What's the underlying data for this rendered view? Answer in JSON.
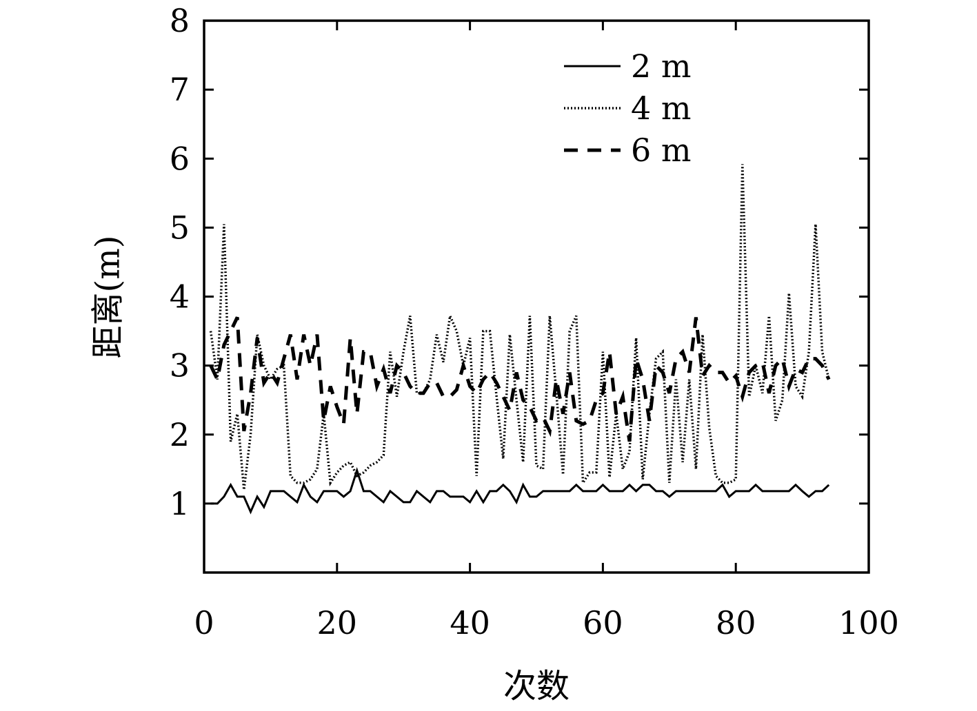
{
  "chart_data": {
    "type": "line",
    "title": "",
    "xlabel": "次数",
    "ylabel": "距离(m)",
    "xlim": [
      0,
      100
    ],
    "ylim": [
      0,
      8
    ],
    "x_ticks": [
      0,
      20,
      40,
      60,
      80,
      100
    ],
    "x_tick_labels": [
      "0",
      "20",
      "40",
      "60",
      "80",
      "100"
    ],
    "y_ticks": [
      1,
      2,
      3,
      4,
      5,
      6,
      7,
      8
    ],
    "y_tick_labels": [
      "1",
      "2",
      "3",
      "4",
      "5",
      "6",
      "7",
      "8"
    ],
    "grid": false,
    "legend_position": "top-right",
    "x": [
      1,
      2,
      3,
      4,
      5,
      6,
      7,
      8,
      9,
      10,
      11,
      12,
      13,
      14,
      15,
      16,
      17,
      18,
      19,
      20,
      21,
      22,
      23,
      24,
      25,
      26,
      27,
      28,
      29,
      30,
      31,
      32,
      33,
      34,
      35,
      36,
      37,
      38,
      39,
      40,
      41,
      42,
      43,
      44,
      45,
      46,
      47,
      48,
      49,
      50,
      51,
      52,
      53,
      54,
      55,
      56,
      57,
      58,
      59,
      60,
      61,
      62,
      63,
      64,
      65,
      66,
      67,
      68,
      69,
      70,
      71,
      72,
      73,
      74,
      75,
      76,
      77,
      78,
      79,
      80,
      81,
      82,
      83,
      84,
      85,
      86,
      87,
      88,
      89,
      90,
      91,
      92,
      93,
      94
    ],
    "series": [
      {
        "name": "2 m",
        "style": "solid",
        "values": [
          1.0,
          1.0,
          1.1,
          1.27,
          1.1,
          1.1,
          0.88,
          1.1,
          0.95,
          1.18,
          1.18,
          1.18,
          1.1,
          1.02,
          1.27,
          1.1,
          1.02,
          1.18,
          1.18,
          1.18,
          1.1,
          1.18,
          1.48,
          1.18,
          1.18,
          1.1,
          1.02,
          1.18,
          1.1,
          1.02,
          1.02,
          1.18,
          1.1,
          1.02,
          1.18,
          1.18,
          1.1,
          1.1,
          1.1,
          1.02,
          1.18,
          1.02,
          1.18,
          1.18,
          1.27,
          1.18,
          1.02,
          1.27,
          1.1,
          1.1,
          1.18,
          1.18,
          1.18,
          1.18,
          1.18,
          1.27,
          1.18,
          1.18,
          1.18,
          1.27,
          1.18,
          1.18,
          1.18,
          1.27,
          1.18,
          1.27,
          1.27,
          1.18,
          1.18,
          1.1,
          1.18,
          1.18,
          1.18,
          1.18,
          1.18,
          1.18,
          1.18,
          1.27,
          1.1,
          1.18,
          1.18,
          1.18,
          1.27,
          1.18,
          1.18,
          1.18,
          1.18,
          1.18,
          1.27,
          1.18,
          1.1,
          1.18,
          1.18,
          1.27
        ]
      },
      {
        "name": "4 m",
        "style": "dotted",
        "values": [
          3.5,
          2.8,
          5.05,
          1.9,
          2.3,
          1.2,
          2.0,
          3.45,
          3.0,
          2.8,
          2.95,
          3.0,
          1.4,
          1.3,
          1.3,
          1.35,
          1.5,
          2.3,
          1.3,
          1.45,
          1.55,
          1.6,
          1.4,
          1.45,
          1.55,
          1.6,
          1.7,
          3.2,
          2.55,
          3.2,
          3.72,
          2.6,
          2.6,
          2.8,
          3.45,
          3.05,
          3.72,
          3.5,
          3.0,
          3.4,
          1.4,
          3.5,
          3.5,
          2.55,
          1.65,
          3.45,
          2.5,
          1.6,
          3.72,
          1.55,
          1.5,
          3.72,
          2.6,
          1.42,
          3.5,
          3.72,
          1.3,
          1.45,
          1.45,
          3.2,
          1.38,
          2.3,
          1.5,
          1.75,
          3.4,
          1.35,
          2.3,
          3.1,
          3.2,
          1.3,
          2.8,
          1.6,
          2.8,
          1.5,
          3.45,
          2.1,
          1.4,
          1.3,
          1.3,
          1.35,
          5.92,
          2.55,
          3.0,
          2.6,
          3.72,
          2.2,
          2.5,
          4.05,
          2.7,
          2.55,
          3.2,
          5.05,
          3.2,
          2.8
        ]
      },
      {
        "name": "6 m",
        "style": "dashed",
        "values": [
          3.0,
          2.8,
          3.3,
          3.5,
          3.7,
          2.05,
          2.6,
          3.4,
          2.75,
          2.9,
          2.75,
          3.1,
          3.45,
          2.8,
          3.45,
          3.0,
          3.45,
          2.2,
          2.7,
          2.4,
          2.15,
          3.4,
          2.3,
          3.2,
          3.2,
          2.7,
          2.95,
          2.6,
          3.0,
          2.9,
          2.7,
          2.6,
          2.6,
          2.75,
          2.75,
          2.55,
          2.55,
          2.65,
          3.0,
          2.7,
          2.6,
          2.8,
          2.9,
          2.75,
          2.55,
          2.35,
          2.9,
          2.5,
          2.4,
          2.2,
          2.25,
          2.05,
          2.8,
          2.3,
          2.9,
          2.2,
          2.15,
          2.2,
          2.5,
          2.6,
          3.2,
          2.3,
          2.55,
          1.9,
          3.1,
          2.8,
          2.2,
          3.0,
          2.9,
          2.6,
          3.1,
          3.2,
          2.9,
          3.7,
          2.85,
          3.0,
          2.9,
          2.9,
          2.75,
          2.85,
          2.55,
          2.9,
          3.0,
          3.05,
          2.6,
          3.0,
          3.1,
          2.7,
          2.95,
          2.9,
          3.1,
          3.1,
          3.0,
          2.8
        ]
      }
    ]
  }
}
